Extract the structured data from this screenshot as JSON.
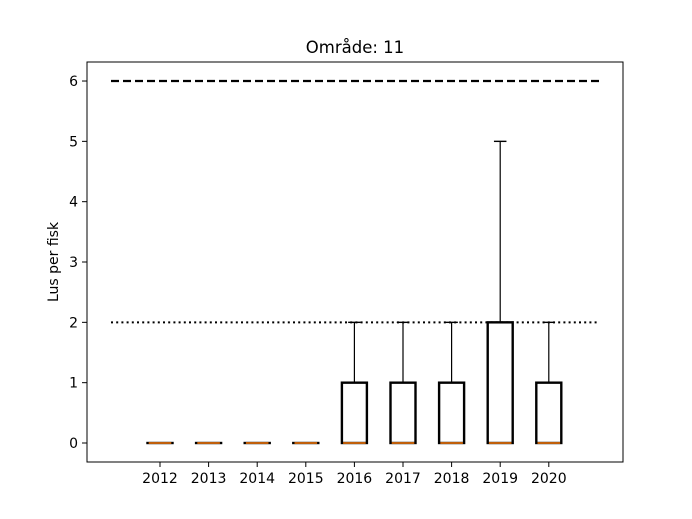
{
  "chart_data": {
    "type": "boxplot",
    "title": "Område: 11",
    "xlabel": "",
    "ylabel": "Lus per fisk",
    "categories": [
      "2012",
      "2013",
      "2014",
      "2015",
      "2016",
      "2017",
      "2018",
      "2019",
      "2020"
    ],
    "boxes": [
      {
        "category": "2012",
        "whisker_low": 0,
        "q1": 0,
        "median": 0,
        "q3": 0,
        "whisker_high": 0
      },
      {
        "category": "2013",
        "whisker_low": 0,
        "q1": 0,
        "median": 0,
        "q3": 0,
        "whisker_high": 0
      },
      {
        "category": "2014",
        "whisker_low": 0,
        "q1": 0,
        "median": 0,
        "q3": 0,
        "whisker_high": 0
      },
      {
        "category": "2015",
        "whisker_low": 0,
        "q1": 0,
        "median": 0,
        "q3": 0,
        "whisker_high": 0
      },
      {
        "category": "2016",
        "whisker_low": 0,
        "q1": 0,
        "median": 0,
        "q3": 1,
        "whisker_high": 2
      },
      {
        "category": "2017",
        "whisker_low": 0,
        "q1": 0,
        "median": 0,
        "q3": 1,
        "whisker_high": 2
      },
      {
        "category": "2018",
        "whisker_low": 0,
        "q1": 0,
        "median": 0,
        "q3": 1,
        "whisker_high": 2
      },
      {
        "category": "2019",
        "whisker_low": 0,
        "q1": 0,
        "median": 0,
        "q3": 2,
        "whisker_high": 5
      },
      {
        "category": "2020",
        "whisker_low": 0,
        "q1": 0,
        "median": 0,
        "q3": 1,
        "whisker_high": 2
      }
    ],
    "reference_lines": [
      {
        "y": 6,
        "style": "dashed"
      },
      {
        "y": 2,
        "style": "dotted"
      }
    ],
    "yticks": [
      "0",
      "1",
      "2",
      "3",
      "4",
      "5",
      "6"
    ],
    "ylim": [
      -0.3,
      6.3
    ],
    "grid": false,
    "colors": {
      "box": "#000000",
      "median": "#ff7f0e",
      "reference": "#000000"
    }
  }
}
